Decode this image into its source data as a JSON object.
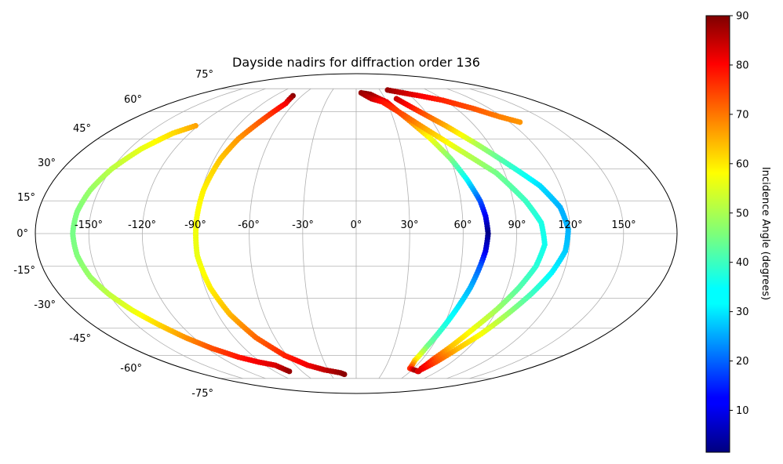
{
  "chart_data": {
    "type": "scatter",
    "projection": "mollweide",
    "title": "Dayside nadirs for diffraction order 136",
    "grid": true,
    "lon_ticks": [
      "-150°",
      "-120°",
      "-90°",
      "-60°",
      "-30°",
      "0°",
      "30°",
      "60°",
      "90°",
      "120°",
      "150°"
    ],
    "lat_ticks": [
      "75°",
      "60°",
      "45°",
      "30°",
      "15°",
      "0°",
      "-15°",
      "-30°",
      "-45°",
      "-60°",
      "-75°"
    ],
    "colorbar": {
      "label": "Incidence Angle (degrees)",
      "colormap": "jet",
      "range": [
        1.5,
        90
      ],
      "ticks": [
        "10",
        "20",
        "30",
        "40",
        "50",
        "60",
        "70",
        "80",
        "90"
      ]
    },
    "series": [
      {
        "points": [
          [
            -122,
            52,
            65
          ],
          [
            -132,
            48,
            60
          ],
          [
            -142,
            40,
            55
          ],
          [
            -150,
            30,
            51
          ],
          [
            -155,
            20,
            48
          ],
          [
            -158,
            10,
            46
          ],
          [
            -159,
            0,
            45
          ],
          [
            -158,
            -10,
            46
          ],
          [
            -155,
            -20,
            48
          ],
          [
            -150,
            -28,
            51
          ],
          [
            -143,
            -36,
            55
          ],
          [
            -135,
            -43,
            60
          ],
          [
            -126,
            -50,
            66
          ],
          [
            -116,
            -56,
            72
          ],
          [
            -104,
            -61,
            77
          ],
          [
            -92,
            -64,
            80
          ],
          [
            -80,
            -66,
            82
          ],
          [
            -74,
            -70,
            88
          ]
        ]
      },
      {
        "points": [
          [
            -70,
            70,
            89
          ],
          [
            -68,
            65,
            80
          ],
          [
            -75,
            55,
            72
          ],
          [
            -82,
            45,
            66
          ],
          [
            -86,
            35,
            62
          ],
          [
            -89,
            20,
            58
          ],
          [
            -90,
            5,
            56
          ],
          [
            -90,
            -10,
            55
          ],
          [
            -87,
            -25,
            58
          ],
          [
            -82,
            -38,
            63
          ],
          [
            -74,
            -50,
            70
          ],
          [
            -62,
            -60,
            76
          ],
          [
            -48,
            -66,
            80
          ],
          [
            -34,
            -69,
            84
          ],
          [
            -18,
            -71,
            88
          ],
          [
            -14,
            -72,
            89
          ]
        ]
      },
      {
        "points": [
          [
            6,
            72,
            90
          ],
          [
            16,
            71,
            88
          ],
          [
            30,
            66,
            80
          ],
          [
            42,
            55,
            68
          ],
          [
            52,
            45,
            56
          ],
          [
            60,
            35,
            46
          ],
          [
            66,
            25,
            35
          ],
          [
            71,
            15,
            20
          ],
          [
            73,
            8,
            12
          ],
          [
            74,
            0,
            2
          ],
          [
            73,
            -8,
            10
          ],
          [
            71,
            -15,
            20
          ],
          [
            68,
            -25,
            28
          ],
          [
            64,
            -35,
            33
          ],
          [
            60,
            -45,
            38
          ],
          [
            56,
            -55,
            45
          ],
          [
            54,
            -63,
            60
          ],
          [
            56,
            -68,
            75
          ],
          [
            62,
            -69,
            85
          ],
          [
            69,
            -70,
            89
          ]
        ]
      },
      {
        "points": [
          [
            6,
            72,
            88
          ],
          [
            16,
            68,
            84
          ],
          [
            26,
            66,
            78
          ],
          [
            40,
            58,
            72
          ],
          [
            55,
            48,
            62
          ],
          [
            70,
            38,
            52
          ],
          [
            85,
            28,
            45
          ],
          [
            97,
            15,
            40
          ],
          [
            104,
            5,
            37
          ],
          [
            106,
            -5,
            36
          ],
          [
            103,
            -15,
            38
          ],
          [
            97,
            -25,
            42
          ],
          [
            90,
            -35,
            48
          ],
          [
            82,
            -45,
            55
          ],
          [
            75,
            -55,
            62
          ],
          [
            70,
            -62,
            72
          ],
          [
            68,
            -68,
            82
          ]
        ]
      },
      {
        "points": [
          [
            40,
            74,
            88
          ],
          [
            55,
            72,
            84
          ],
          [
            70,
            70,
            80
          ],
          [
            88,
            67,
            76
          ],
          [
            105,
            62,
            72
          ],
          [
            118,
            57,
            68
          ],
          [
            128,
            54,
            66
          ]
        ]
      },
      {
        "points": [
          [
            42,
            68,
            84
          ],
          [
            55,
            60,
            74
          ],
          [
            68,
            52,
            64
          ],
          [
            82,
            42,
            50
          ],
          [
            95,
            32,
            40
          ],
          [
            108,
            22,
            32
          ],
          [
            116,
            12,
            28
          ],
          [
            119,
            2,
            28
          ],
          [
            118,
            -8,
            30
          ],
          [
            113,
            -18,
            34
          ],
          [
            106,
            -28,
            40
          ],
          [
            98,
            -38,
            48
          ],
          [
            90,
            -48,
            56
          ],
          [
            82,
            -56,
            62
          ],
          [
            75,
            -64,
            72
          ],
          [
            68,
            -70,
            82
          ]
        ]
      }
    ]
  }
}
